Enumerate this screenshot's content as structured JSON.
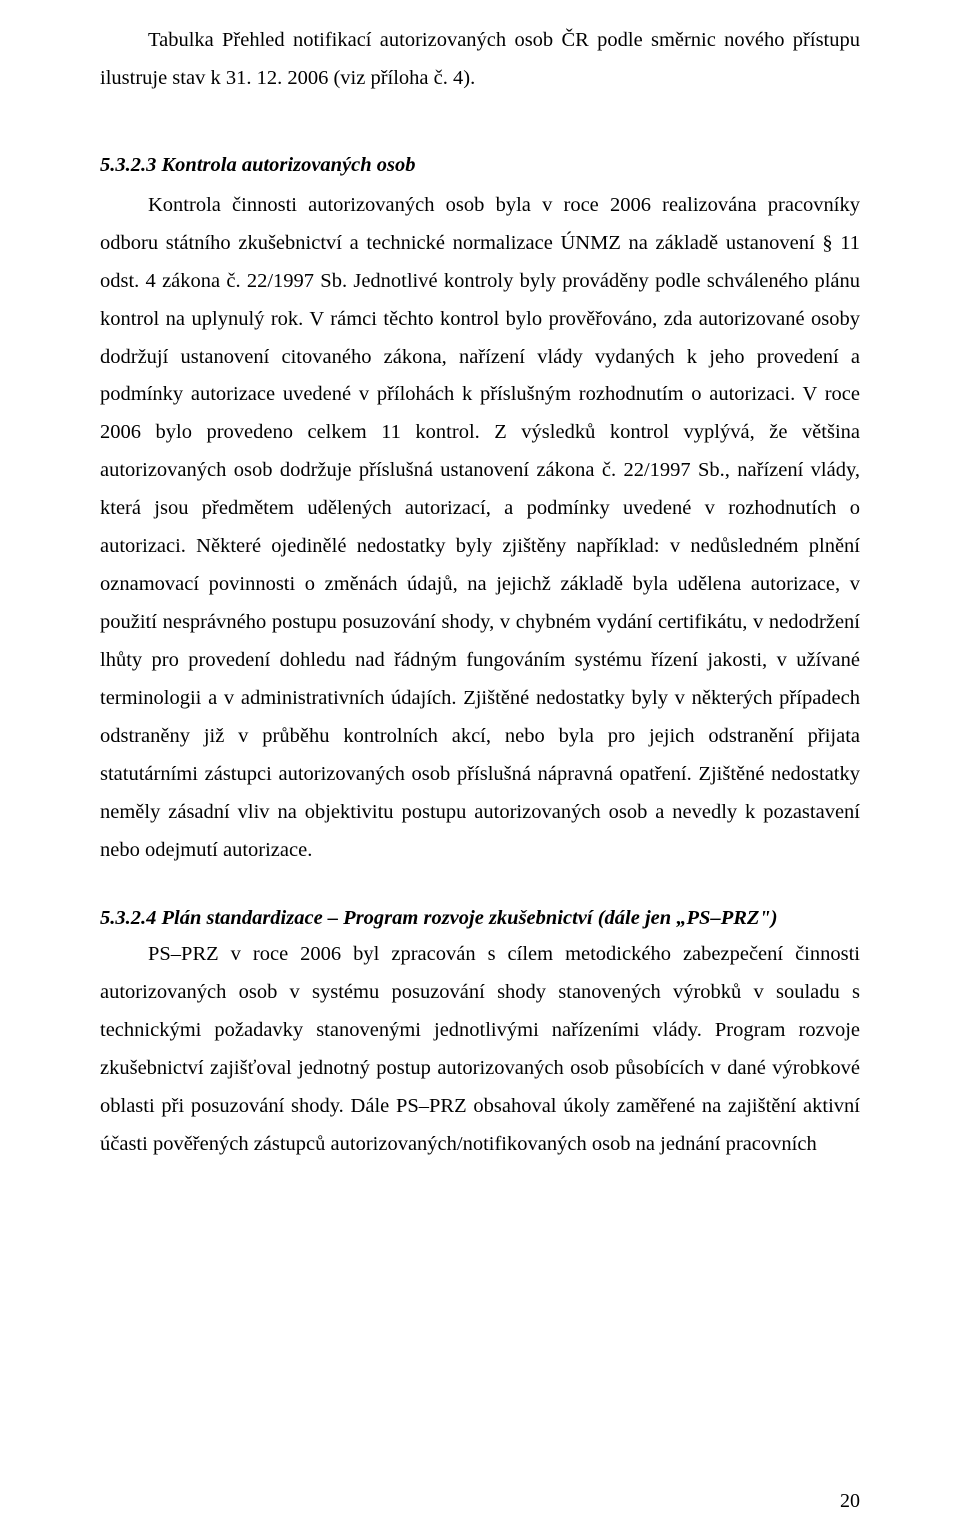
{
  "para1": "Tabulka Přehled notifikací autorizovaných osob ČR podle směrnic nového přístupu ilustruje stav k 31. 12. 2006  (viz příloha č. 4).",
  "heading_533": "5.3.2.3 Kontrola autorizovaných osob",
  "para2": "Kontrola činnosti autorizovaných osob byla v roce 2006 realizována pracovníky odboru státního zkušebnictví a technické normalizace ÚNMZ na základě ustanovení § 11 odst. 4 zákona č. 22/1997 Sb. Jednotlivé kontroly byly prováděny podle schváleného plánu kontrol na uplynulý rok. V rámci těchto kontrol bylo prověřováno, zda autorizované osoby dodržují ustanovení citovaného zákona, nařízení vlády vydaných k jeho provedení a podmínky autorizace uvedené v přílohách k příslušným rozhodnutím o autorizaci. V roce 2006 bylo provedeno celkem 11 kontrol. Z výsledků kontrol vyplývá, že většina autorizovaných osob dodržuje příslušná ustanovení zákona č. 22/1997 Sb., nařízení vlády, která jsou předmětem udělených autorizací, a podmínky uvedené v rozhodnutích o autorizaci. Některé ojedinělé nedostatky byly zjištěny například: v nedůsledném plnění oznamovací povinnosti o změnách údajů, na jejichž základě byla udělena autorizace, v použití nesprávného postupu posuzování shody, v chybném vydání certifikátu, v nedodržení lhůty pro provedení dohledu nad řádným fungováním systému řízení jakosti, v užívané terminologii a v administrativních údajích. Zjištěné nedostatky byly v některých případech odstraněny již v průběhu kontrolních akcí, nebo byla pro jejich odstranění přijata statutárními zástupci autorizovaných osob příslušná nápravná opatření. Zjištěné nedostatky neměly zásadní vliv na objektivitu postupu autorizovaných osob a nevedly k pozastavení nebo odejmutí autorizace.",
  "heading_534": "5.3.2.4   Plán standardizace – Program rozvoje zkušebnictví (dále jen „PS–PRZ\")",
  "para3": "PS–PRZ v roce 2006 byl zpracován s cílem metodického zabezpečení činnosti autorizovaných osob v systému posuzování shody stanovených výrobků v souladu s technickými požadavky stanovenými jednotlivými nařízeními vlády. Program rozvoje zkušebnictví zajišťoval jednotný postup autorizovaných osob působících v dané výrobkové oblasti při posuzování shody. Dále PS–PRZ obsahoval úkoly zaměřené na zajištění aktivní účasti pověřených zástupců autorizovaných/notifikovaných osob na jednání pracovních",
  "page_number": "20"
}
